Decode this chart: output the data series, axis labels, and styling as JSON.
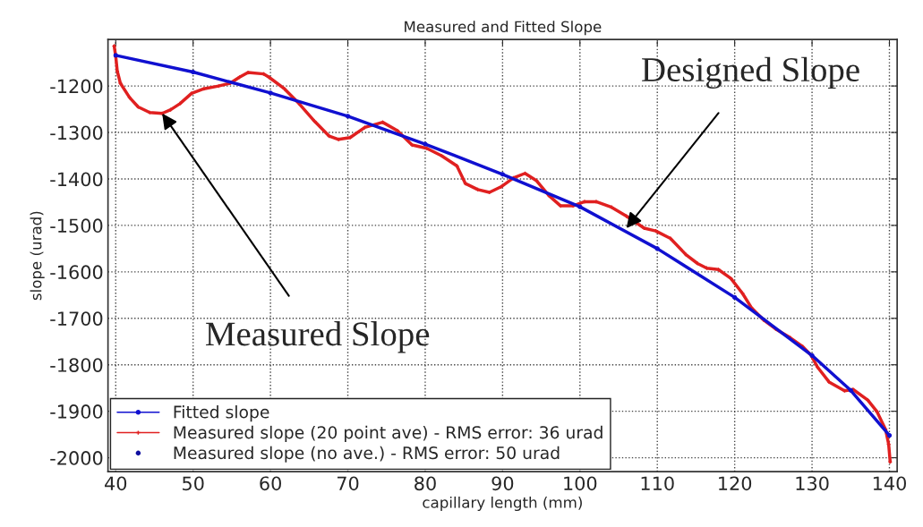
{
  "chart_data": {
    "type": "line",
    "title": "Measured and Fitted Slope",
    "xlabel": "capillary length (mm)",
    "ylabel": "slope (urad)",
    "xlim": [
      39,
      141
    ],
    "ylim": [
      -2030,
      -1100
    ],
    "xticks": [
      40,
      50,
      60,
      70,
      80,
      90,
      100,
      110,
      120,
      130,
      140
    ],
    "yticks": [
      -2000,
      -1900,
      -1800,
      -1700,
      -1600,
      -1500,
      -1400,
      -1300,
      -1200
    ],
    "grid": true,
    "legend": "bottom left",
    "line_style": "solid",
    "series": [
      {
        "name": "Fitted slope",
        "color": "#1010d0",
        "marker": "circle",
        "x": [
          40,
          50,
          60,
          70,
          80,
          90,
          100,
          110,
          120,
          130,
          135,
          140
        ],
        "values": [
          -1134,
          -1170,
          -1215,
          -1265,
          -1325,
          -1390,
          -1460,
          -1550,
          -1655,
          -1780,
          -1855,
          -1952
        ]
      },
      {
        "name": "Measured slope (20 point ave) - RMS error: 36 urad",
        "color": "#e02020",
        "marker": "cross",
        "x": [
          39.8,
          40.0,
          40.2,
          40.6,
          41.8,
          42.9,
          44.4,
          46.0,
          47.1,
          48.3,
          49.8,
          51.4,
          53.3,
          54.8,
          56.0,
          57.1,
          59.1,
          59.8,
          61.8,
          63.7,
          65.7,
          67.6,
          68.8,
          70.3,
          72.2,
          74.5,
          76.4,
          78.3,
          80.2,
          82.1,
          84.1,
          85.2,
          86.8,
          88.3,
          89.8,
          91.4,
          92.9,
          94.4,
          96.0,
          97.5,
          99.1,
          100.6,
          102.1,
          104.1,
          106.0,
          108.3,
          109.8,
          111.7,
          113.7,
          115.2,
          116.4,
          117.9,
          119.5,
          121.0,
          122.2,
          123.7,
          125.3,
          127.2,
          128.8,
          129.9,
          130.7,
          132.2,
          134.2,
          135.3,
          137.2,
          138.4,
          139.5,
          139.9,
          140.1
        ],
        "values": [
          -1114,
          -1136,
          -1168,
          -1194,
          -1225,
          -1245,
          -1257,
          -1259,
          -1251,
          -1238,
          -1216,
          -1206,
          -1200,
          -1194,
          -1181,
          -1171,
          -1174,
          -1181,
          -1206,
          -1238,
          -1276,
          -1308,
          -1315,
          -1311,
          -1289,
          -1278,
          -1296,
          -1327,
          -1334,
          -1350,
          -1372,
          -1410,
          -1423,
          -1429,
          -1417,
          -1398,
          -1388,
          -1404,
          -1436,
          -1458,
          -1458,
          -1449,
          -1449,
          -1461,
          -1480,
          -1506,
          -1512,
          -1528,
          -1563,
          -1582,
          -1592,
          -1595,
          -1614,
          -1646,
          -1678,
          -1703,
          -1723,
          -1742,
          -1761,
          -1780,
          -1805,
          -1837,
          -1856,
          -1853,
          -1876,
          -1901,
          -1939,
          -1971,
          -2009
        ]
      },
      {
        "name": "Measured slope (no ave.) - RMS error: 50 urad",
        "color": "#1010a0",
        "type": "scatter",
        "marker": "circle"
      }
    ],
    "annotations": [
      {
        "text": "Measured Slope",
        "x": 46.0,
        "y": -1259
      },
      {
        "text": "Designed Slope",
        "x": 106.0,
        "y": -1506
      }
    ]
  }
}
